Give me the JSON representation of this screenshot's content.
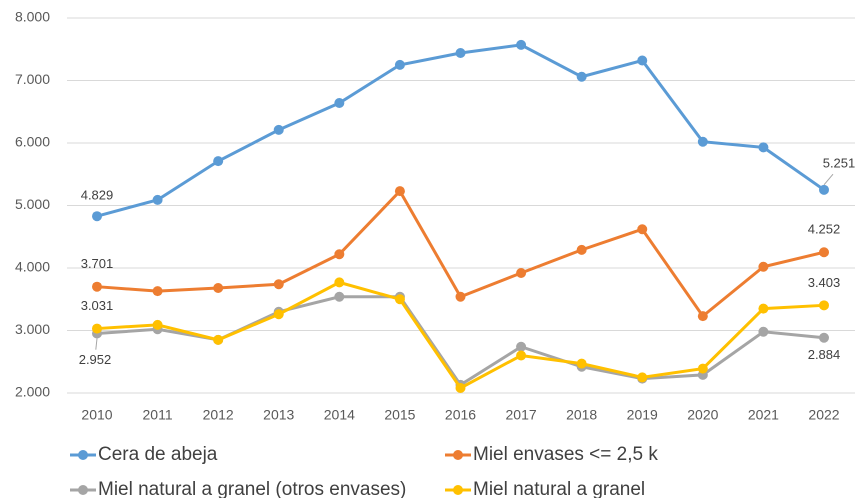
{
  "chart_data": {
    "type": "line",
    "categories": [
      "2010",
      "2011",
      "2012",
      "2013",
      "2014",
      "2015",
      "2016",
      "2017",
      "2018",
      "2019",
      "2020",
      "2021",
      "2022"
    ],
    "series": [
      {
        "name": "Cera de abeja",
        "color": "#5b9bd5",
        "values": [
          4829,
          5090,
          5710,
          6210,
          6640,
          7250,
          7440,
          7570,
          7060,
          7320,
          6020,
          5930,
          5251
        ],
        "value_labels": [
          "4.829",
          null,
          null,
          null,
          null,
          null,
          null,
          null,
          null,
          null,
          null,
          null,
          "5.251"
        ]
      },
      {
        "name": "Miel envases <= 2,5 k",
        "color": "#ed7d31",
        "values": [
          3701,
          3630,
          3680,
          3740,
          4220,
          5230,
          3540,
          3920,
          4290,
          4620,
          3230,
          4020,
          4252
        ],
        "value_labels": [
          "3.701",
          null,
          null,
          null,
          null,
          null,
          null,
          null,
          null,
          null,
          null,
          null,
          "4.252"
        ]
      },
      {
        "name": "Miel natural a granel (otros envases)",
        "color": "#a5a5a5",
        "values": [
          2952,
          3020,
          2850,
          3300,
          3540,
          3540,
          2130,
          2740,
          2420,
          2230,
          2290,
          2980,
          2884
        ],
        "value_labels": [
          "2.952",
          null,
          null,
          null,
          null,
          null,
          null,
          null,
          null,
          null,
          null,
          null,
          "2.884"
        ]
      },
      {
        "name": "Miel natural a granel",
        "color": "#ffc000",
        "values": [
          3031,
          3090,
          2850,
          3260,
          3770,
          3500,
          2080,
          2600,
          2470,
          2250,
          2390,
          3350,
          3403
        ],
        "value_labels": [
          "3.031",
          null,
          null,
          null,
          null,
          null,
          null,
          null,
          null,
          null,
          null,
          null,
          "3.403"
        ]
      }
    ],
    "ylim": [
      2000,
      8000
    ],
    "yticks": [
      {
        "value": 2000,
        "label": "2.000"
      },
      {
        "value": 3000,
        "label": "3.000"
      },
      {
        "value": 4000,
        "label": "4.000"
      },
      {
        "value": 5000,
        "label": "5.000"
      },
      {
        "value": 6000,
        "label": "6.000"
      },
      {
        "value": 7000,
        "label": "7.000"
      },
      {
        "value": 8000,
        "label": "8.000"
      }
    ],
    "grid": true,
    "legend": "bottom"
  }
}
